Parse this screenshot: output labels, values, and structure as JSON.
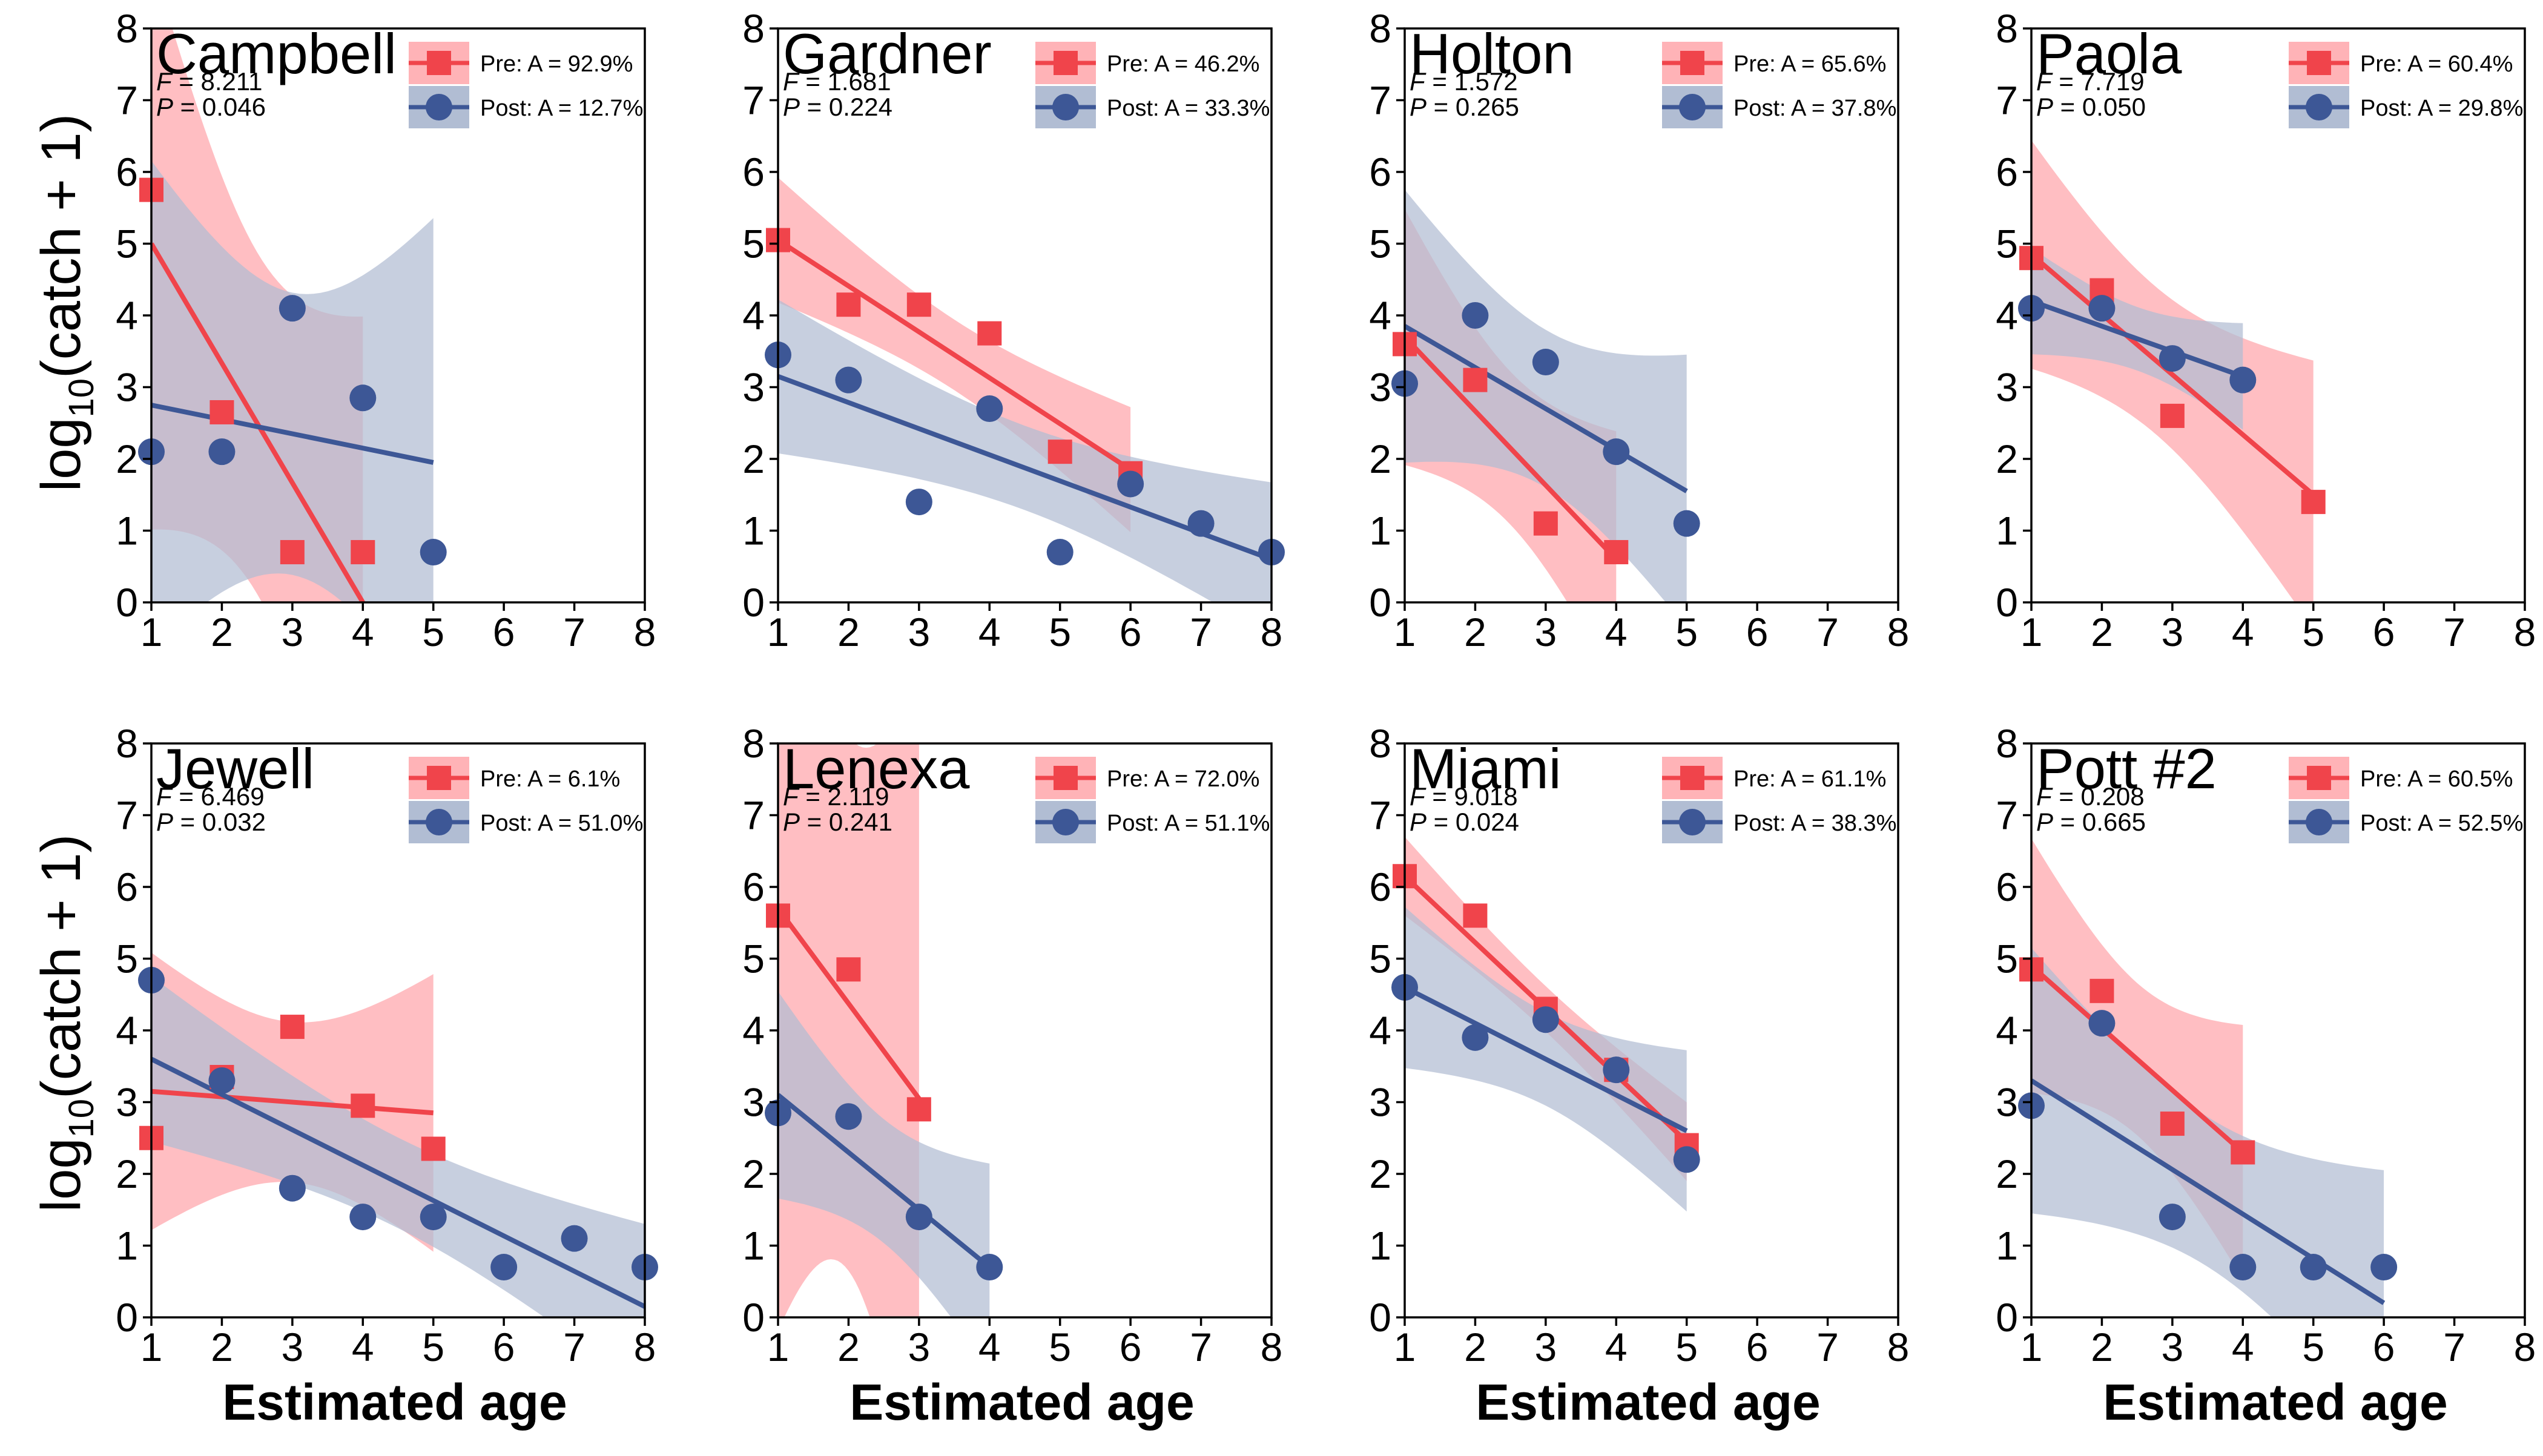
{
  "figure": {
    "ylabel_main": "log",
    "ylabel_sub": "10",
    "ylabel_rest": "(catch + 1)",
    "xlabel": "Estimated age"
  },
  "colors": {
    "pre": "#f0444b",
    "pre_band": "#ffb3b7",
    "post": "#3d5796",
    "post_band": "#b1bdd3",
    "overlap": "#9a6a86"
  },
  "legend_icons": {
    "pre": "square-marker",
    "post": "circle-marker"
  },
  "chart_data": [
    {
      "type": "scatter",
      "title": "Campbell",
      "F": "8.211",
      "P": "0.046",
      "xlim": [
        1,
        8
      ],
      "ylim": [
        0,
        8
      ],
      "xticks": [
        1,
        2,
        3,
        4,
        5,
        6,
        7,
        8
      ],
      "yticks": [
        0,
        1,
        2,
        3,
        4,
        5,
        6,
        7,
        8
      ],
      "series": [
        {
          "name": "Pre: A = 92.9%",
          "marker": "square",
          "x": [
            1,
            2,
            3,
            4
          ],
          "y": [
            5.75,
            2.65,
            0.7,
            0.7
          ],
          "fit": [
            [
              1,
              5.0
            ],
            [
              4,
              0.0
            ]
          ]
        },
        {
          "name": "Post: A = 12.7%",
          "marker": "circle",
          "x": [
            1,
            2,
            3,
            4,
            5
          ],
          "y": [
            2.1,
            2.1,
            4.1,
            2.85,
            0.7
          ],
          "fit": [
            [
              1,
              2.75
            ],
            [
              5,
              1.95
            ]
          ]
        }
      ]
    },
    {
      "type": "scatter",
      "title": "Gardner",
      "F": "1.681",
      "P": "0.224",
      "xlim": [
        1,
        8
      ],
      "ylim": [
        0,
        8
      ],
      "xticks": [
        1,
        2,
        3,
        4,
        5,
        6,
        7,
        8
      ],
      "yticks": [
        0,
        1,
        2,
        3,
        4,
        5,
        6,
        7,
        8
      ],
      "series": [
        {
          "name": "Pre: A = 46.2%",
          "marker": "square",
          "x": [
            1,
            2,
            3,
            4,
            5,
            6
          ],
          "y": [
            5.05,
            4.15,
            4.15,
            3.75,
            2.1,
            1.8
          ],
          "fit": [
            [
              1,
              5.05
            ],
            [
              6,
              1.85
            ]
          ]
        },
        {
          "name": "Post: A = 33.3%",
          "marker": "circle",
          "x": [
            1,
            2,
            3,
            4,
            5,
            6,
            7,
            8
          ],
          "y": [
            3.45,
            3.1,
            1.4,
            2.7,
            0.7,
            1.65,
            1.1,
            0.7
          ],
          "fit": [
            [
              1,
              3.15
            ],
            [
              8,
              0.6
            ]
          ]
        }
      ]
    },
    {
      "type": "scatter",
      "title": "Holton",
      "F": "1.572",
      "P": "0.265",
      "xlim": [
        1,
        8
      ],
      "ylim": [
        0,
        8
      ],
      "xticks": [
        1,
        2,
        3,
        4,
        5,
        6,
        7,
        8
      ],
      "yticks": [
        0,
        1,
        2,
        3,
        4,
        5,
        6,
        7,
        8
      ],
      "series": [
        {
          "name": "Pre: A = 65.6%",
          "marker": "square",
          "x": [
            1,
            2,
            3,
            4
          ],
          "y": [
            3.6,
            3.1,
            1.1,
            0.7
          ],
          "fit": [
            [
              1,
              3.7
            ],
            [
              4,
              0.6
            ]
          ]
        },
        {
          "name": "Post: A = 37.8%",
          "marker": "circle",
          "x": [
            1,
            2,
            3,
            4,
            5
          ],
          "y": [
            3.05,
            4.0,
            3.35,
            2.1,
            1.1
          ],
          "fit": [
            [
              1,
              3.85
            ],
            [
              5,
              1.55
            ]
          ]
        }
      ]
    },
    {
      "type": "scatter",
      "title": "Paola",
      "F": "7.719",
      "P": "0.050",
      "xlim": [
        1,
        8
      ],
      "ylim": [
        0,
        8
      ],
      "xticks": [
        1,
        2,
        3,
        4,
        5,
        6,
        7,
        8
      ],
      "yticks": [
        0,
        1,
        2,
        3,
        4,
        5,
        6,
        7,
        8
      ],
      "series": [
        {
          "name": "Pre: A = 60.4%",
          "marker": "square",
          "x": [
            1,
            2,
            3,
            5
          ],
          "y": [
            4.8,
            4.35,
            2.6,
            1.4
          ],
          "fit": [
            [
              1,
              4.85
            ],
            [
              5,
              1.5
            ]
          ]
        },
        {
          "name": "Post: A = 29.8%",
          "marker": "circle",
          "x": [
            1,
            2,
            3,
            4
          ],
          "y": [
            4.1,
            4.1,
            3.4,
            3.1
          ],
          "fit": [
            [
              1,
              4.2
            ],
            [
              4,
              3.15
            ]
          ]
        }
      ]
    },
    {
      "type": "scatter",
      "title": "Jewell",
      "F": "6.469",
      "P": "0.032",
      "xlim": [
        1,
        8
      ],
      "ylim": [
        0,
        8
      ],
      "xticks": [
        1,
        2,
        3,
        4,
        5,
        6,
        7,
        8
      ],
      "yticks": [
        0,
        1,
        2,
        3,
        4,
        5,
        6,
        7,
        8
      ],
      "series": [
        {
          "name": "Pre: A = 6.1%",
          "marker": "square",
          "x": [
            1,
            2,
            3,
            4,
            5
          ],
          "y": [
            2.5,
            3.35,
            4.05,
            2.95,
            2.35
          ],
          "fit": [
            [
              1,
              3.15
            ],
            [
              5,
              2.85
            ]
          ]
        },
        {
          "name": "Post: A = 51.0%",
          "marker": "circle",
          "x": [
            1,
            2,
            3,
            4,
            5,
            6,
            7,
            8
          ],
          "y": [
            4.7,
            3.3,
            1.8,
            1.4,
            1.4,
            0.7,
            1.1,
            0.7
          ],
          "fit": [
            [
              1,
              3.6
            ],
            [
              8,
              0.15
            ]
          ]
        }
      ]
    },
    {
      "type": "scatter",
      "title": "Lenexa",
      "F": "2.119",
      "P": "0.241",
      "xlim": [
        1,
        8
      ],
      "ylim": [
        0,
        8
      ],
      "xticks": [
        1,
        2,
        3,
        4,
        5,
        6,
        7,
        8
      ],
      "yticks": [
        0,
        1,
        2,
        3,
        4,
        5,
        6,
        7,
        8
      ],
      "series": [
        {
          "name": "Pre: A = 72.0%",
          "marker": "square",
          "x": [
            1,
            2,
            3
          ],
          "y": [
            5.6,
            4.85,
            2.9
          ],
          "fit": [
            [
              1,
              5.7
            ],
            [
              3,
              3.05
            ]
          ]
        },
        {
          "name": "Post: A = 51.1%",
          "marker": "circle",
          "x": [
            1,
            2,
            3,
            4
          ],
          "y": [
            2.85,
            2.8,
            1.4,
            0.7
          ],
          "fit": [
            [
              1,
              3.1
            ],
            [
              4,
              0.7
            ]
          ]
        }
      ]
    },
    {
      "type": "scatter",
      "title": "Miami",
      "F": "9.018",
      "P": "0.024",
      "xlim": [
        1,
        8
      ],
      "ylim": [
        0,
        8
      ],
      "xticks": [
        1,
        2,
        3,
        4,
        5,
        6,
        7,
        8
      ],
      "yticks": [
        0,
        1,
        2,
        3,
        4,
        5,
        6,
        7,
        8
      ],
      "series": [
        {
          "name": "Pre: A = 61.1%",
          "marker": "square",
          "x": [
            1,
            2,
            3,
            4,
            5
          ],
          "y": [
            6.15,
            5.6,
            4.3,
            3.45,
            2.4
          ],
          "fit": [
            [
              1,
              6.15
            ],
            [
              5,
              2.45
            ]
          ]
        },
        {
          "name": "Post: A = 38.3%",
          "marker": "circle",
          "x": [
            1,
            2,
            3,
            4,
            5
          ],
          "y": [
            4.6,
            3.9,
            4.15,
            3.45,
            2.2
          ],
          "fit": [
            [
              1,
              4.6
            ],
            [
              5,
              2.6
            ]
          ]
        }
      ]
    },
    {
      "type": "scatter",
      "title": "Pott #2",
      "F": "0.208",
      "P": "0.665",
      "xlim": [
        1,
        8
      ],
      "ylim": [
        0,
        8
      ],
      "xticks": [
        1,
        2,
        3,
        4,
        5,
        6,
        7,
        8
      ],
      "yticks": [
        0,
        1,
        2,
        3,
        4,
        5,
        6,
        7,
        8
      ],
      "series": [
        {
          "name": "Pre: A = 60.5%",
          "marker": "square",
          "x": [
            1,
            2,
            3,
            4
          ],
          "y": [
            4.85,
            4.55,
            2.7,
            2.3
          ],
          "fit": [
            [
              1,
              4.9
            ],
            [
              4,
              2.3
            ]
          ]
        },
        {
          "name": "Post: A = 52.5%",
          "marker": "circle",
          "x": [
            1,
            2,
            3,
            4,
            5,
            6
          ],
          "y": [
            2.95,
            4.1,
            1.4,
            0.7,
            0.7,
            0.7
          ],
          "fit": [
            [
              1,
              3.3
            ],
            [
              6,
              0.2
            ]
          ]
        }
      ]
    }
  ]
}
